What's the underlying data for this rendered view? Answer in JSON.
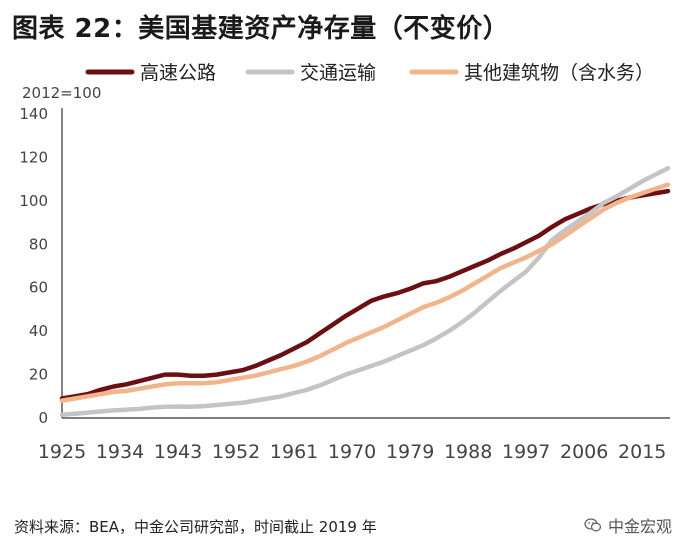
{
  "header": {
    "title": "图表 22：美国基建资产净存量（不变价）"
  },
  "footer": {
    "source": "资料来源：BEA，中金公司研究部，时间截止 2019 年",
    "watermark_text": "中金宏观",
    "watermark_icon": "wechat-icon"
  },
  "chart_data": {
    "type": "line",
    "title": "",
    "ylabel": "2012=100",
    "xlabel": "",
    "ylim": [
      0,
      140
    ],
    "xlim": [
      1925,
      2019
    ],
    "yticks": [
      0,
      20,
      40,
      60,
      80,
      100,
      120,
      140
    ],
    "xticks": [
      1925,
      1934,
      1943,
      1952,
      1961,
      1970,
      1979,
      1988,
      1997,
      2006,
      2015
    ],
    "grid": false,
    "legend_position": "top",
    "series": [
      {
        "name": "高速公路",
        "color": "#6b0f12",
        "x": [
          1925,
          1927,
          1929,
          1931,
          1933,
          1935,
          1937,
          1939,
          1941,
          1943,
          1945,
          1947,
          1949,
          1951,
          1953,
          1955,
          1957,
          1959,
          1961,
          1963,
          1965,
          1967,
          1969,
          1971,
          1973,
          1975,
          1977,
          1979,
          1981,
          1983,
          1985,
          1987,
          1989,
          1991,
          1993,
          1995,
          1997,
          1999,
          2001,
          2003,
          2005,
          2007,
          2009,
          2011,
          2013,
          2015,
          2017,
          2019
        ],
        "values": [
          9,
          10,
          11,
          13,
          14.5,
          15.5,
          17,
          18.5,
          20,
          20,
          19.5,
          19.5,
          20,
          21,
          22,
          24,
          26.5,
          29,
          32,
          35,
          39,
          43,
          47,
          50.5,
          54,
          56,
          57.5,
          59.5,
          62,
          63,
          65,
          67.5,
          70,
          72.5,
          75.5,
          78,
          81,
          84,
          88,
          91.5,
          94,
          96.5,
          98.5,
          100,
          101.5,
          102.5,
          103.5,
          104.5
        ]
      },
      {
        "name": "交通运输",
        "color": "#c4c4c4",
        "x": [
          1925,
          1927,
          1929,
          1931,
          1933,
          1935,
          1937,
          1939,
          1941,
          1943,
          1945,
          1947,
          1949,
          1951,
          1953,
          1955,
          1957,
          1959,
          1961,
          1963,
          1965,
          1967,
          1969,
          1971,
          1973,
          1975,
          1977,
          1979,
          1981,
          1983,
          1985,
          1987,
          1989,
          1991,
          1993,
          1995,
          1997,
          1999,
          2001,
          2003,
          2005,
          2007,
          2009,
          2011,
          2013,
          2015,
          2017,
          2019
        ],
        "values": [
          1.5,
          2,
          2.5,
          3,
          3.5,
          3.8,
          4.2,
          4.8,
          5.2,
          5.3,
          5.2,
          5.5,
          6,
          6.5,
          7,
          8,
          9,
          10,
          11.5,
          13,
          15,
          17.5,
          20,
          22,
          24,
          26,
          28.5,
          31,
          33.5,
          36.5,
          40,
          44,
          48.5,
          53.5,
          58.5,
          63,
          67.5,
          74,
          82,
          86.5,
          90.5,
          94.5,
          99,
          102,
          105.5,
          109,
          112,
          115
        ]
      },
      {
        "name": "其他建筑物（含水务）",
        "color": "#f2b48a",
        "x": [
          1925,
          1927,
          1929,
          1931,
          1933,
          1935,
          1937,
          1939,
          1941,
          1943,
          1945,
          1947,
          1949,
          1951,
          1953,
          1955,
          1957,
          1959,
          1961,
          1963,
          1965,
          1967,
          1969,
          1971,
          1973,
          1975,
          1977,
          1979,
          1981,
          1983,
          1985,
          1987,
          1989,
          1991,
          1993,
          1995,
          1997,
          1999,
          2001,
          2003,
          2005,
          2007,
          2009,
          2011,
          2013,
          2015,
          2017,
          2019
        ],
        "values": [
          8,
          9,
          10,
          11,
          12,
          12.5,
          13.5,
          14.5,
          15.5,
          16,
          16,
          16,
          16.5,
          17.5,
          18.5,
          19.5,
          21,
          22.5,
          24,
          26,
          28.5,
          31.5,
          34.5,
          37,
          39.5,
          42,
          45,
          48,
          51,
          53,
          55.5,
          58.5,
          62,
          65.5,
          69,
          71.5,
          74,
          77,
          80,
          84,
          88,
          92,
          96,
          99,
          101.5,
          103.5,
          105.5,
          107.5
        ]
      }
    ]
  }
}
